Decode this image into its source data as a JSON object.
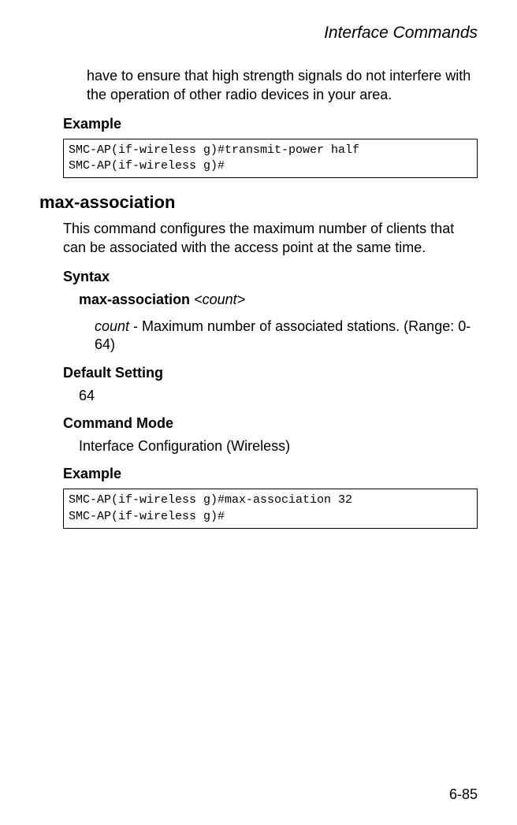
{
  "header": {
    "title": "Interface Commands"
  },
  "continuation": "have to ensure that high strength signals do not interfere with the operation of other radio devices in your area.",
  "labels": {
    "example": "Example",
    "syntax": "Syntax",
    "default_setting": "Default Setting",
    "command_mode": "Command Mode"
  },
  "example1": {
    "line1": "SMC-AP(if-wireless g)#transmit-power half",
    "line2": "SMC-AP(if-wireless g)#"
  },
  "command": {
    "name": "max-association",
    "description": "This command configures the maximum number of clients that can be associated with the access point at the same time.",
    "syntax_cmd": "max-association",
    "syntax_arg": "<count>",
    "param_name": "count",
    "param_desc": " - Maximum number of associated stations. (Range: 0-64)",
    "default_value": "64",
    "command_mode_value": "Interface Configuration (Wireless)"
  },
  "example2": {
    "line1": "SMC-AP(if-wireless g)#max-association 32",
    "line2": "SMC-AP(if-wireless g)#"
  },
  "page_number": "6-85"
}
